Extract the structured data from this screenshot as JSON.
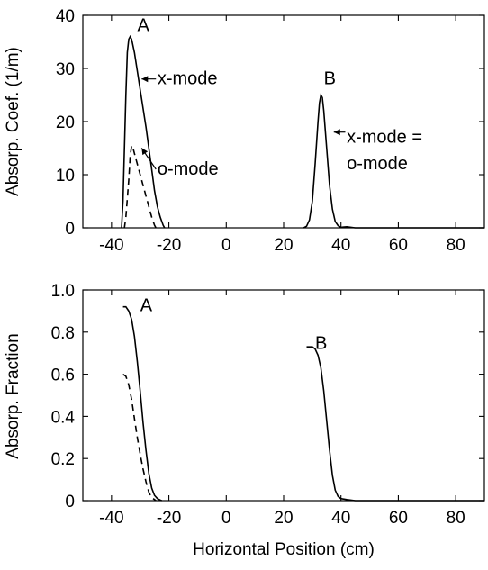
{
  "chart_data": [
    {
      "type": "line",
      "ylabel": "Absorp. Coef. (1/m)",
      "xlabel": "",
      "xlim": [
        -50,
        90
      ],
      "ylim": [
        0,
        40
      ],
      "xticks": [
        "-40",
        "-20",
        "0",
        "20",
        "40",
        "60",
        "80"
      ],
      "yticks": [
        "0",
        "10",
        "20",
        "30",
        "40"
      ],
      "series": [
        {
          "style": "solid",
          "x": [
            -36.5,
            -36,
            -35,
            -34.5,
            -34,
            -33.5,
            -33,
            -32,
            -31,
            -30,
            -29,
            -28,
            -27,
            -26,
            -25,
            -24,
            -23,
            -22,
            -21.5
          ],
          "y": [
            0,
            5,
            25,
            33,
            35.5,
            36,
            35.5,
            33,
            29.5,
            26,
            22.5,
            19,
            15,
            11,
            7,
            4,
            2,
            0.5,
            0
          ]
        },
        {
          "style": "dashed",
          "x": [
            -35.5,
            -35,
            -34,
            -33.5,
            -33,
            -32.5,
            -32,
            -31,
            -30,
            -29,
            -28,
            -27,
            -26,
            -25,
            -24.5
          ],
          "y": [
            0,
            2,
            9,
            13.5,
            15.5,
            15,
            14,
            12,
            10,
            8,
            6,
            4,
            2,
            0.5,
            0
          ]
        },
        {
          "style": "solid",
          "x": [
            27,
            28,
            29,
            30,
            31,
            32,
            32.5,
            33,
            33.5,
            34,
            35,
            36,
            37,
            38,
            39,
            40,
            42,
            45,
            90
          ],
          "y": [
            0,
            0.3,
            1.5,
            5,
            12,
            20,
            23.5,
            25,
            24.5,
            22,
            15,
            8,
            3.5,
            1.2,
            0.4,
            0.1,
            0.2,
            0,
            0
          ]
        }
      ],
      "annotations": [
        {
          "text": "A",
          "x": -31,
          "y": 37
        },
        {
          "text": "x-mode",
          "x": -24,
          "y": 27
        },
        {
          "text": "o-mode",
          "x": -24,
          "y": 10
        },
        {
          "text": "B",
          "x": 34,
          "y": 27
        },
        {
          "text": "x-mode =",
          "x": 42,
          "y": 16
        },
        {
          "text": "o-mode",
          "x": 42,
          "y": 11
        }
      ]
    },
    {
      "type": "line",
      "ylabel": "Absorp. Fraction",
      "xlabel": "Horizontal Position (cm)",
      "xlim": [
        -50,
        90
      ],
      "ylim": [
        0,
        1.0
      ],
      "xticks": [
        "-40",
        "-20",
        "0",
        "20",
        "40",
        "60",
        "80"
      ],
      "yticks": [
        "0",
        "0.2",
        "0.4",
        "0.6",
        "0.8",
        "1.0"
      ],
      "series": [
        {
          "style": "solid",
          "x": [
            -36,
            -35,
            -34,
            -33,
            -32,
            -31,
            -30,
            -29,
            -28,
            -27,
            -26,
            -25,
            -24,
            -23,
            -22.5
          ],
          "y": [
            0.92,
            0.92,
            0.9,
            0.86,
            0.78,
            0.66,
            0.52,
            0.37,
            0.24,
            0.13,
            0.06,
            0.025,
            0.01,
            0.003,
            0
          ]
        },
        {
          "style": "dashed",
          "x": [
            -36,
            -35,
            -34,
            -33,
            -32,
            -31,
            -30,
            -29,
            -28,
            -27,
            -26,
            -25,
            -24.5
          ],
          "y": [
            0.6,
            0.59,
            0.55,
            0.48,
            0.39,
            0.3,
            0.22,
            0.15,
            0.09,
            0.04,
            0.015,
            0.005,
            0
          ]
        },
        {
          "style": "solid",
          "x": [
            28,
            29,
            30,
            31,
            32,
            33,
            34,
            35,
            36,
            37,
            38,
            39,
            40,
            42,
            45,
            90
          ],
          "y": [
            0.73,
            0.73,
            0.73,
            0.72,
            0.69,
            0.63,
            0.52,
            0.38,
            0.24,
            0.12,
            0.05,
            0.02,
            0.01,
            0.005,
            0,
            0
          ]
        }
      ],
      "annotations": [
        {
          "text": "A",
          "x": -30,
          "y": 0.9
        },
        {
          "text": "B",
          "x": 31,
          "y": 0.72
        }
      ]
    }
  ]
}
